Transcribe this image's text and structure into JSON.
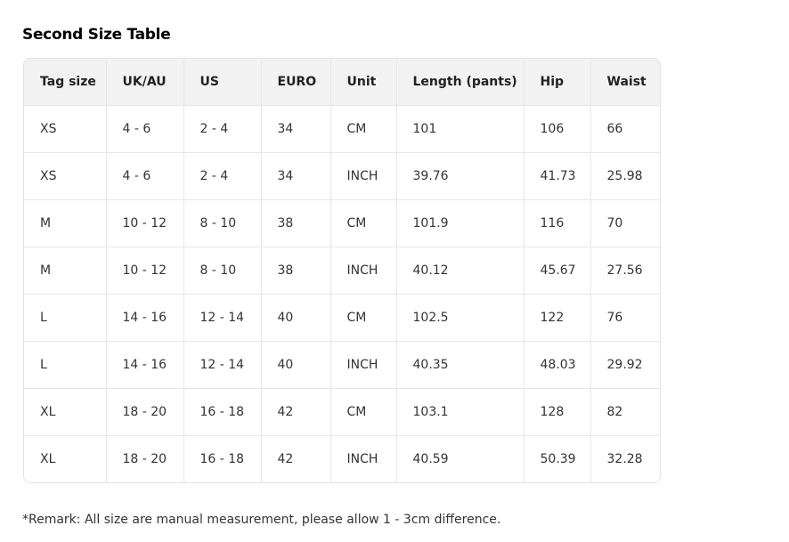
{
  "title": "Second Size Table",
  "headers": [
    "Tag size",
    "UK/AU",
    "US",
    "EURO",
    "Unit",
    "Length (pants)",
    "Hip",
    "Waist"
  ],
  "rows": [
    [
      "XS",
      "4 - 6",
      "2 - 4",
      "34",
      "CM",
      "101",
      "106",
      "66"
    ],
    [
      "XS",
      "4 - 6",
      "2 - 4",
      "34",
      "INCH",
      "39.76",
      "41.73",
      "25.98"
    ],
    [
      "M",
      "10 - 12",
      "8 - 10",
      "38",
      "CM",
      "101.9",
      "116",
      "70"
    ],
    [
      "M",
      "10 - 12",
      "8 - 10",
      "38",
      "INCH",
      "40.12",
      "45.67",
      "27.56"
    ],
    [
      "L",
      "14 - 16",
      "12 - 14",
      "40",
      "CM",
      "102.5",
      "122",
      "76"
    ],
    [
      "L",
      "14 - 16",
      "12 - 14",
      "40",
      "INCH",
      "40.35",
      "48.03",
      "29.92"
    ],
    [
      "XL",
      "18 - 20",
      "16 - 18",
      "42",
      "CM",
      "103.1",
      "128",
      "82"
    ],
    [
      "XL",
      "18 - 20",
      "16 - 18",
      "42",
      "INCH",
      "40.59",
      "50.39",
      "32.28"
    ]
  ],
  "remark": "*Remark: All size are manual measurement, please allow 1 - 3cm difference."
}
